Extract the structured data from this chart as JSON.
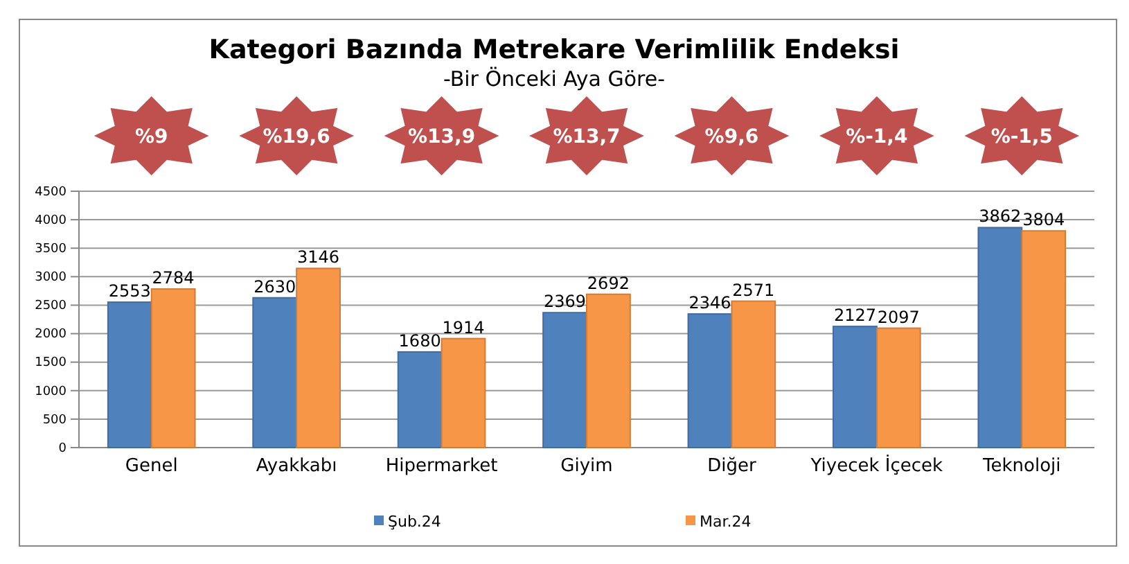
{
  "chart_data": {
    "type": "bar",
    "title": "Kategori Bazında Metrekare Verimlilik Endeksi",
    "subtitle": "-Bir Önceki Aya Göre-",
    "categories": [
      "Genel",
      "Ayakkabı",
      "Hipermarket",
      "Giyim",
      "Diğer",
      "Yiyecek İçecek",
      "Teknoloji"
    ],
    "series": [
      {
        "name": "Şub.24",
        "color": "#4f81bd",
        "values": [
          2553,
          2630,
          1680,
          2369,
          2346,
          2127,
          3862
        ]
      },
      {
        "name": "Mar.24",
        "color": "#f79646",
        "values": [
          2784,
          3146,
          1914,
          2692,
          2571,
          2097,
          3804
        ]
      }
    ],
    "ylim": [
      0,
      4500
    ],
    "yticks": [
      0,
      500,
      1000,
      1500,
      2000,
      2500,
      3000,
      3500,
      4000,
      4500
    ],
    "grid": "y",
    "legend": "bottom",
    "data_labels": true,
    "annotations": [
      "%9",
      "%19,6",
      "%13,9",
      "%13,7",
      "%9,6",
      "%-1,4",
      "%-1,5"
    ]
  }
}
